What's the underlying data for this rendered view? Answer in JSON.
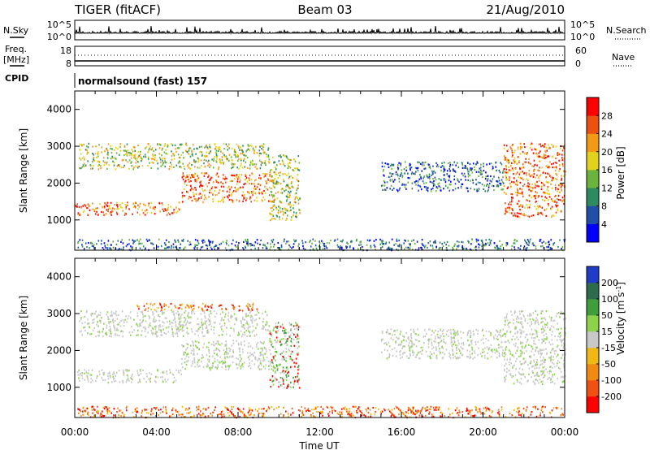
{
  "header": {
    "radar": "TIGER (fitACF)",
    "beam": "Beam 03",
    "date": "21/Aug/2010"
  },
  "side_labels": {
    "nsky": "N.Sky",
    "nsearch": "N.Search",
    "freq_line1": "Freq.",
    "freq_line2": "[MHz]",
    "nave": "Nave",
    "cpid": "CPID",
    "cpid_value": "normalsound (fast) 157"
  },
  "panel_ticks": {
    "nsky_left": [
      "10^5",
      "10^0"
    ],
    "nsky_right": [
      "10^5",
      "10^0"
    ],
    "freq_left": [
      "18",
      "8"
    ],
    "freq_right": [
      "60",
      "0"
    ]
  },
  "chart_data": [
    {
      "type": "heatmap",
      "name": "power",
      "ylabel": "Slant Range [km]",
      "xlim": [
        "00:00",
        "24:00"
      ],
      "ylim": [
        180,
        4500
      ],
      "yticks": [
        "1000",
        "2000",
        "3000",
        "4000"
      ],
      "colorbar": {
        "label": "Power [dB]",
        "ticks": [
          "4",
          "8",
          "12",
          "16",
          "20",
          "24",
          "28"
        ],
        "range": [
          0,
          32
        ],
        "colors": [
          "#0000ff",
          "#1f4fa8",
          "#2e8a60",
          "#6ab43e",
          "#e2d21c",
          "#f39a14",
          "#ee5010",
          "#ff0000"
        ]
      },
      "echo_bands": [
        {
          "t": [
            0.0,
            5.2
          ],
          "r": [
            1150,
            1500
          ],
          "level": "high"
        },
        {
          "t": [
            5.2,
            9.8
          ],
          "r": [
            1500,
            2300
          ],
          "level": "high"
        },
        {
          "t": [
            0.2,
            9.5
          ],
          "r": [
            2400,
            3100
          ],
          "level": "mid"
        },
        {
          "t": [
            9.5,
            11.0
          ],
          "r": [
            1000,
            2800
          ],
          "level": "mid"
        },
        {
          "t": [
            15.0,
            21.0
          ],
          "r": [
            1800,
            2600
          ],
          "level": "low"
        },
        {
          "t": [
            21.0,
            24.0
          ],
          "r": [
            1100,
            3100
          ],
          "level": "high"
        },
        {
          "t": [
            0.0,
            24.0
          ],
          "r": [
            200,
            500
          ],
          "level": "low"
        }
      ]
    },
    {
      "type": "heatmap",
      "name": "velocity",
      "ylabel": "Slant Range [km]",
      "xlabel": "Time UT",
      "xlim": [
        "00:00",
        "24:00"
      ],
      "ylim": [
        180,
        4500
      ],
      "xticks": [
        "00:00",
        "04:00",
        "08:00",
        "12:00",
        "16:00",
        "20:00",
        "00:00"
      ],
      "yticks": [
        "1000",
        "2000",
        "3000",
        "4000"
      ],
      "colorbar": {
        "label": "Velocity [m s",
        "label_sup": "-1",
        "label_close": "]",
        "ticks": [
          "200",
          "100",
          "50",
          "15",
          "-15",
          "-50",
          "-100",
          "-200"
        ],
        "colors": [
          "#1e3cc8",
          "#2c6c4c",
          "#3f9e3a",
          "#8cd24a",
          "#c8c8c8",
          "#f0b814",
          "#f08a10",
          "#f05014",
          "#ff0000"
        ]
      },
      "echo_bands": [
        {
          "t": [
            0.0,
            5.2
          ],
          "r": [
            1150,
            1500
          ],
          "level": "zero"
        },
        {
          "t": [
            5.2,
            9.8
          ],
          "r": [
            1500,
            2300
          ],
          "level": "zero"
        },
        {
          "t": [
            0.2,
            9.5
          ],
          "r": [
            2400,
            3100
          ],
          "level": "zero"
        },
        {
          "t": [
            3.0,
            9.0
          ],
          "r": [
            3100,
            3300
          ],
          "level": "neg"
        },
        {
          "t": [
            9.5,
            11.0
          ],
          "r": [
            1000,
            2800
          ],
          "level": "mix"
        },
        {
          "t": [
            15.0,
            21.0
          ],
          "r": [
            1800,
            2600
          ],
          "level": "zero"
        },
        {
          "t": [
            21.0,
            24.0
          ],
          "r": [
            1100,
            3100
          ],
          "level": "zero"
        },
        {
          "t": [
            0.0,
            24.0
          ],
          "r": [
            200,
            500
          ],
          "level": "neg"
        }
      ]
    }
  ]
}
